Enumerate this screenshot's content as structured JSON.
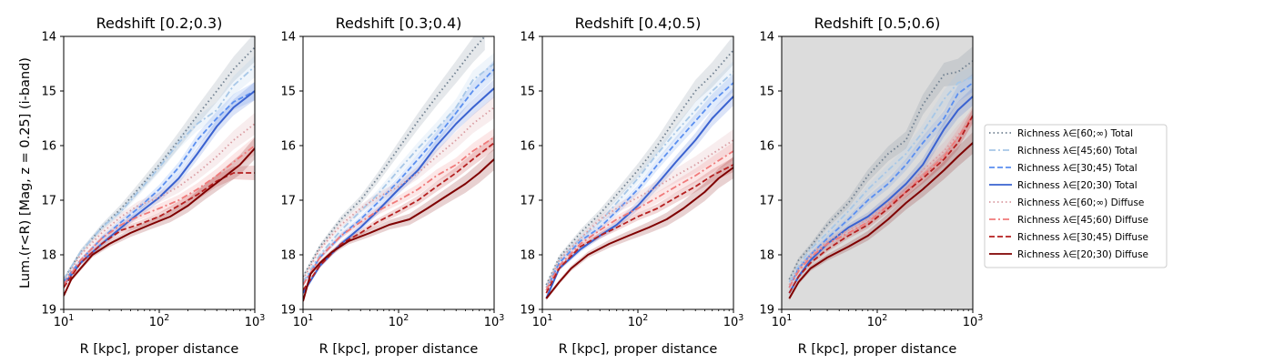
{
  "figure": {
    "ylabel": "Lum.(r<R) [Mag, z = 0.25] (i-band)",
    "xlabel": "R [kpc], proper distance"
  },
  "chart_data": [
    {
      "type": "line",
      "title": "Redshift [0.2;0.3)",
      "xscale": "log",
      "xlim": [
        10,
        1000
      ],
      "ylim": [
        19,
        14
      ],
      "y_inverted": true,
      "x_ticks": [
        "10^1",
        "10^2",
        "10^3"
      ],
      "y_ticks": [
        "14",
        "15",
        "16",
        "17",
        "18",
        "19"
      ],
      "background": "white",
      "series": [
        {
          "name": "Richness λ∈[60;∞) Total",
          "x": [
            10,
            15,
            25,
            40,
            60,
            100,
            160,
            250,
            400,
            600,
            1000
          ],
          "y": [
            18.45,
            17.95,
            17.5,
            17.15,
            16.8,
            16.35,
            15.9,
            15.45,
            15.0,
            14.6,
            14.2
          ]
        },
        {
          "name": "Richness λ∈[45;60) Total",
          "x": [
            10,
            15,
            25,
            40,
            60,
            100,
            160,
            250,
            400,
            600,
            1000
          ],
          "y": [
            18.45,
            17.95,
            17.5,
            17.2,
            16.85,
            16.4,
            15.95,
            15.6,
            15.35,
            14.9,
            14.55
          ]
        },
        {
          "name": "Richness λ∈[30;45) Total",
          "x": [
            10,
            15,
            25,
            40,
            60,
            100,
            160,
            250,
            400,
            600,
            1000
          ],
          "y": [
            18.5,
            18.1,
            17.7,
            17.4,
            17.15,
            16.8,
            16.4,
            15.9,
            15.5,
            15.2,
            15.0
          ]
        },
        {
          "name": "Richness λ∈[20;30) Total",
          "x": [
            10,
            15,
            25,
            40,
            60,
            100,
            160,
            250,
            400,
            600,
            1000
          ],
          "y": [
            18.55,
            18.15,
            17.8,
            17.5,
            17.25,
            16.95,
            16.6,
            16.15,
            15.65,
            15.3,
            15.0
          ]
        },
        {
          "name": "Richness λ∈[60;∞) Diffuse",
          "x": [
            10,
            15,
            25,
            40,
            60,
            100,
            160,
            250,
            400,
            600,
            1000
          ],
          "y": [
            18.5,
            18.0,
            17.6,
            17.3,
            17.1,
            16.95,
            16.75,
            16.5,
            16.2,
            15.9,
            15.6
          ]
        },
        {
          "name": "Richness λ∈[45;60) Diffuse",
          "x": [
            10,
            15,
            25,
            40,
            60,
            100,
            160,
            250,
            400,
            600,
            1000
          ],
          "y": [
            18.55,
            18.1,
            17.7,
            17.45,
            17.3,
            17.15,
            17.0,
            16.8,
            16.55,
            16.3,
            16.0
          ]
        },
        {
          "name": "Richness λ∈[30;45) Diffuse",
          "x": [
            10,
            15,
            25,
            40,
            60,
            100,
            160,
            250,
            400,
            600,
            1000
          ],
          "y": [
            18.6,
            18.15,
            17.8,
            17.55,
            17.45,
            17.3,
            17.1,
            16.9,
            16.65,
            16.5,
            16.5
          ]
        },
        {
          "name": "Richness λ∈[20;30) Diffuse",
          "x": [
            10,
            12,
            15,
            20,
            30,
            50,
            80,
            130,
            200,
            300,
            500,
            700,
            1000
          ],
          "y": [
            18.75,
            18.45,
            18.25,
            18.0,
            17.8,
            17.6,
            17.45,
            17.3,
            17.1,
            16.85,
            16.55,
            16.35,
            16.05
          ]
        }
      ]
    },
    {
      "type": "line",
      "title": "Redshift [0.3;0.4)",
      "xscale": "log",
      "xlim": [
        10,
        1000
      ],
      "ylim": [
        19,
        14
      ],
      "y_inverted": true,
      "x_ticks": [
        "10^1",
        "10^2",
        "10^3"
      ],
      "y_ticks": [
        "14",
        "15",
        "16",
        "17",
        "18",
        "19"
      ],
      "background": "white",
      "series": [
        {
          "name": "Richness λ∈[60;∞) Total",
          "x": [
            10,
            15,
            25,
            40,
            60,
            100,
            160,
            250,
            400,
            600,
            800
          ],
          "y": [
            18.4,
            17.85,
            17.35,
            17.0,
            16.6,
            16.05,
            15.55,
            15.1,
            14.65,
            14.25,
            14.0
          ]
        },
        {
          "name": "Richness λ∈[45;60) Total",
          "x": [
            10,
            15,
            25,
            40,
            60,
            100,
            160,
            250,
            400,
            600,
            1000
          ],
          "y": [
            18.5,
            18.0,
            17.55,
            17.2,
            16.9,
            16.45,
            16.05,
            15.7,
            15.3,
            14.8,
            14.5
          ]
        },
        {
          "name": "Richness λ∈[30;45) Total",
          "x": [
            10,
            15,
            25,
            40,
            60,
            100,
            160,
            250,
            400,
            600,
            1000
          ],
          "y": [
            18.55,
            18.05,
            17.65,
            17.35,
            17.05,
            16.65,
            16.25,
            15.85,
            15.4,
            15.0,
            14.6
          ]
        },
        {
          "name": "Richness λ∈[20;30) Total",
          "x": [
            10,
            15,
            25,
            40,
            60,
            100,
            160,
            250,
            400,
            600,
            1000
          ],
          "y": [
            18.7,
            18.2,
            17.8,
            17.5,
            17.2,
            16.8,
            16.45,
            16.0,
            15.6,
            15.3,
            14.95
          ]
        },
        {
          "name": "Richness λ∈[60;∞) Diffuse",
          "x": [
            10,
            15,
            25,
            40,
            60,
            100,
            160,
            250,
            400,
            600,
            1000
          ],
          "y": [
            18.45,
            17.9,
            17.45,
            17.15,
            16.95,
            16.75,
            16.5,
            16.2,
            15.9,
            15.6,
            15.3
          ]
        },
        {
          "name": "Richness λ∈[45;60) Diffuse",
          "x": [
            10,
            15,
            25,
            40,
            60,
            100,
            160,
            250,
            400,
            600,
            1000
          ],
          "y": [
            18.55,
            18.05,
            17.65,
            17.4,
            17.2,
            17.0,
            16.8,
            16.55,
            16.35,
            16.1,
            15.85
          ]
        },
        {
          "name": "Richness λ∈[30;45) Diffuse",
          "x": [
            10,
            15,
            25,
            40,
            60,
            100,
            160,
            250,
            400,
            600,
            1000
          ],
          "y": [
            18.65,
            18.2,
            17.8,
            17.6,
            17.4,
            17.2,
            17.0,
            16.75,
            16.5,
            16.25,
            15.95
          ]
        },
        {
          "name": "Richness λ∈[20;30) Diffuse",
          "x": [
            10,
            12,
            15,
            20,
            30,
            50,
            80,
            130,
            200,
            300,
            500,
            700,
            1000
          ],
          "y": [
            18.85,
            18.35,
            18.15,
            17.95,
            17.75,
            17.6,
            17.45,
            17.35,
            17.15,
            16.95,
            16.7,
            16.5,
            16.25
          ]
        }
      ]
    },
    {
      "type": "line",
      "title": "Redshift [0.4;0.5)",
      "xscale": "log",
      "xlim": [
        10,
        1000
      ],
      "ylim": [
        19,
        14
      ],
      "y_inverted": true,
      "x_ticks": [
        "10^1",
        "10^2",
        "10^3"
      ],
      "y_ticks": [
        "14",
        "15",
        "16",
        "17",
        "18",
        "19"
      ],
      "background": "white",
      "series": [
        {
          "name": "Richness λ∈[60;∞) Total",
          "x": [
            11,
            15,
            25,
            40,
            60,
            100,
            160,
            250,
            400,
            600,
            1000
          ],
          "y": [
            18.55,
            18.05,
            17.6,
            17.25,
            16.9,
            16.45,
            16.0,
            15.5,
            15.0,
            14.7,
            14.25
          ]
        },
        {
          "name": "Richness λ∈[45;60) Total",
          "x": [
            11,
            15,
            25,
            40,
            60,
            100,
            160,
            250,
            400,
            600,
            1000
          ],
          "y": [
            18.6,
            18.1,
            17.7,
            17.4,
            17.05,
            16.6,
            16.15,
            15.75,
            15.35,
            15.0,
            14.65
          ]
        },
        {
          "name": "Richness λ∈[30;45) Total",
          "x": [
            11,
            15,
            25,
            40,
            60,
            100,
            160,
            250,
            400,
            600,
            1000
          ],
          "y": [
            18.65,
            18.15,
            17.75,
            17.5,
            17.2,
            16.8,
            16.35,
            15.95,
            15.55,
            15.2,
            14.85
          ]
        },
        {
          "name": "Richness λ∈[20;30) Total",
          "x": [
            11,
            15,
            25,
            40,
            60,
            100,
            160,
            250,
            400,
            600,
            1000
          ],
          "y": [
            18.8,
            18.25,
            17.9,
            17.65,
            17.45,
            17.1,
            16.7,
            16.3,
            15.9,
            15.5,
            15.1
          ]
        },
        {
          "name": "Richness λ∈[60;∞) Diffuse",
          "x": [
            11,
            15,
            25,
            40,
            60,
            100,
            160,
            250,
            400,
            600,
            1000
          ],
          "y": [
            18.6,
            18.1,
            17.7,
            17.35,
            17.15,
            16.95,
            16.75,
            16.55,
            16.35,
            16.15,
            15.9
          ]
        },
        {
          "name": "Richness λ∈[45;60) Diffuse",
          "x": [
            11,
            15,
            25,
            40,
            60,
            100,
            160,
            250,
            400,
            600,
            1000
          ],
          "y": [
            18.65,
            18.2,
            17.8,
            17.55,
            17.35,
            17.15,
            16.95,
            16.75,
            16.55,
            16.35,
            16.1
          ]
        },
        {
          "name": "Richness λ∈[30;45) Diffuse",
          "x": [
            11,
            15,
            25,
            40,
            60,
            100,
            160,
            250,
            400,
            600,
            1000
          ],
          "y": [
            18.7,
            18.25,
            17.85,
            17.65,
            17.5,
            17.3,
            17.15,
            16.95,
            16.75,
            16.55,
            16.35
          ]
        },
        {
          "name": "Richness λ∈[20;30) Diffuse",
          "x": [
            11,
            15,
            20,
            30,
            50,
            80,
            130,
            200,
            300,
            500,
            700,
            1000
          ],
          "y": [
            18.8,
            18.5,
            18.25,
            18.0,
            17.8,
            17.65,
            17.5,
            17.35,
            17.15,
            16.85,
            16.6,
            16.4
          ]
        }
      ]
    },
    {
      "type": "line",
      "title": "Redshift [0.5;0.6)",
      "xscale": "log",
      "xlim": [
        10,
        1000
      ],
      "ylim": [
        19,
        14
      ],
      "y_inverted": true,
      "x_ticks": [
        "10^1",
        "10^2",
        "10^3"
      ],
      "y_ticks": [
        "14",
        "15",
        "16",
        "17",
        "18",
        "19"
      ],
      "background": "lightgray",
      "series": [
        {
          "name": "Richness λ∈[60;∞) Total",
          "x": [
            12,
            15,
            20,
            30,
            50,
            80,
            130,
            200,
            300,
            500,
            700,
            1000
          ],
          "y": [
            18.45,
            18.1,
            17.85,
            17.45,
            17.05,
            16.55,
            16.15,
            15.9,
            15.25,
            14.7,
            14.65,
            14.45
          ]
        },
        {
          "name": "Richness λ∈[45;60) Total",
          "x": [
            12,
            15,
            20,
            30,
            50,
            80,
            130,
            200,
            300,
            500,
            700,
            1000
          ],
          "y": [
            18.5,
            18.2,
            17.9,
            17.6,
            17.2,
            16.8,
            16.45,
            16.15,
            15.75,
            15.15,
            14.85,
            14.75
          ]
        },
        {
          "name": "Richness λ∈[30;45) Total",
          "x": [
            12,
            15,
            20,
            30,
            50,
            80,
            130,
            200,
            300,
            500,
            700,
            1000
          ],
          "y": [
            18.6,
            18.25,
            18.0,
            17.7,
            17.35,
            17.0,
            16.7,
            16.35,
            15.95,
            15.5,
            15.05,
            14.85
          ]
        },
        {
          "name": "Richness λ∈[20;30) Total",
          "x": [
            12,
            15,
            20,
            30,
            50,
            80,
            130,
            200,
            300,
            500,
            700,
            1000
          ],
          "y": [
            18.7,
            18.4,
            18.1,
            17.8,
            17.5,
            17.3,
            17.0,
            16.7,
            16.35,
            15.7,
            15.35,
            15.1
          ]
        },
        {
          "name": "Richness λ∈[60;∞) Diffuse",
          "x": [
            12,
            15,
            20,
            30,
            50,
            80,
            130,
            200,
            300,
            500,
            700,
            1000
          ],
          "y": [
            18.55,
            18.25,
            18.0,
            17.75,
            17.55,
            17.35,
            17.05,
            16.8,
            16.45,
            16.1,
            15.8,
            15.55
          ]
        },
        {
          "name": "Richness λ∈[45;60) Diffuse",
          "x": [
            12,
            15,
            20,
            30,
            50,
            80,
            130,
            200,
            300,
            500,
            700,
            1000
          ],
          "y": [
            18.6,
            18.3,
            18.05,
            17.8,
            17.6,
            17.4,
            17.1,
            16.85,
            16.55,
            16.2,
            15.85,
            15.45
          ]
        },
        {
          "name": "Richness λ∈[30;45) Diffuse",
          "x": [
            12,
            15,
            20,
            30,
            50,
            80,
            130,
            200,
            300,
            500,
            700,
            1000
          ],
          "y": [
            18.7,
            18.4,
            18.15,
            17.9,
            17.65,
            17.45,
            17.15,
            16.85,
            16.6,
            16.25,
            15.95,
            15.45
          ]
        },
        {
          "name": "Richness λ∈[20;30) Diffuse",
          "x": [
            12,
            15,
            20,
            30,
            50,
            80,
            130,
            200,
            300,
            500,
            700,
            1000
          ],
          "y": [
            18.8,
            18.5,
            18.25,
            18.05,
            17.85,
            17.65,
            17.35,
            17.05,
            16.8,
            16.45,
            16.2,
            15.95
          ]
        }
      ]
    }
  ],
  "legend": {
    "placement": "right",
    "entries": [
      {
        "label": "Richness λ∈[60;∞) Total",
        "color": "#708090",
        "dash": "dotted"
      },
      {
        "label": "Richness λ∈[45;60) Total",
        "color": "#a7c7e7",
        "dash": "dashdot"
      },
      {
        "label": "Richness λ∈[30;45) Total",
        "color": "#5b8ff0",
        "dash": "dashed"
      },
      {
        "label": "Richness λ∈[20;30) Total",
        "color": "#3a62d0",
        "dash": "solid"
      },
      {
        "label": "Richness λ∈[60;∞) Diffuse",
        "color": "#d99aa0",
        "dash": "dotted"
      },
      {
        "label": "Richness λ∈[45;60) Diffuse",
        "color": "#f07a7a",
        "dash": "dashdot"
      },
      {
        "label": "Richness λ∈[30;45) Diffuse",
        "color": "#b51f1f",
        "dash": "dashed"
      },
      {
        "label": "Richness λ∈[20;30) Diffuse",
        "color": "#7f0000",
        "dash": "solid"
      }
    ]
  }
}
